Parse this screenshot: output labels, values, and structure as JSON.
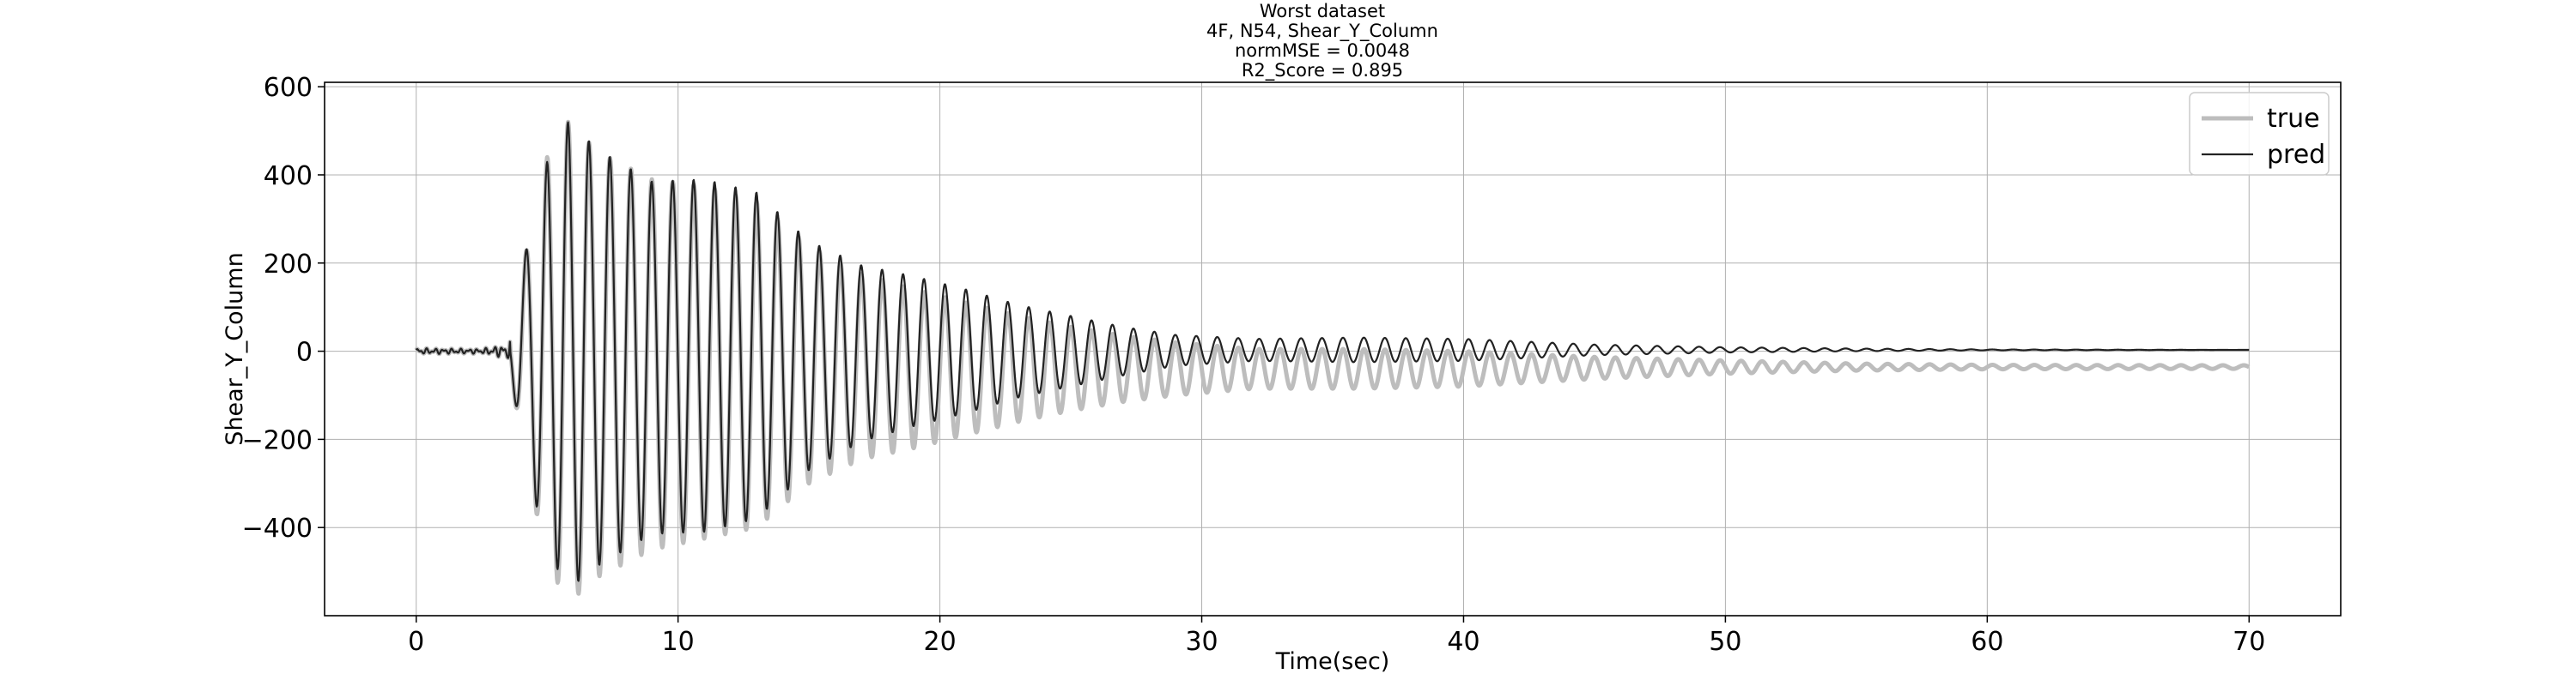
{
  "chart_data": {
    "type": "line",
    "title_lines": [
      "Worst dataset",
      "4F, N54, Shear_Y_Column",
      "normMSE = 0.0048",
      "R2_Score = 0.895"
    ],
    "xlabel": "Time(sec)",
    "ylabel": "Shear_Y_Column",
    "xlim": [
      -3.5,
      73.5
    ],
    "ylim": [
      -600,
      610
    ],
    "xticks": [
      0,
      10,
      20,
      30,
      40,
      50,
      60,
      70
    ],
    "yticks": [
      -400,
      -200,
      0,
      200,
      400,
      600
    ],
    "xtick_labels": [
      "0",
      "10",
      "20",
      "30",
      "40",
      "50",
      "60",
      "70"
    ],
    "ytick_labels": [
      "−400",
      "−200",
      "0",
      "200",
      "400",
      "600"
    ],
    "grid": true,
    "legend_position": "top-right",
    "series": [
      {
        "name": "true",
        "color": "#bdbdbd",
        "keypoints": {
          "t": [
            0,
            2.5,
            3.5,
            4.3,
            5.0,
            5.8,
            7.0,
            9.0,
            11.0,
            13.0,
            15.0,
            17.0,
            19.0,
            21.0,
            23.0,
            25.0,
            27.0,
            29.0,
            32.0,
            36.0,
            40.0,
            45.0,
            50.0,
            55.0,
            60.0,
            70.0
          ],
          "envelope": [
            10,
            8,
            25,
            270,
            460,
            545,
            480,
            420,
            400,
            370,
            270,
            210,
            180,
            150,
            120,
            95,
            75,
            60,
            45,
            45,
            40,
            25,
            15,
            8,
            5,
            4
          ],
          "offset": [
            0,
            0,
            0,
            -15,
            -20,
            -25,
            -30,
            -30,
            -25,
            -30,
            -30,
            -35,
            -40,
            -40,
            -40,
            -40,
            -40,
            -40,
            -40,
            -40,
            -40,
            -38,
            -36,
            -36,
            -36,
            -36
          ]
        },
        "legend_label": "true"
      },
      {
        "name": "pred",
        "color": "#222222",
        "keypoints": {
          "t": [
            0,
            2.5,
            3.5,
            4.3,
            5.0,
            5.8,
            7.0,
            9.0,
            11.0,
            13.0,
            15.0,
            17.0,
            19.0,
            21.0,
            23.0,
            25.0,
            27.0,
            29.0,
            32.0,
            36.0,
            40.0,
            45.0,
            50.0,
            55.0,
            60.0,
            70.0
          ],
          "envelope": [
            10,
            8,
            25,
            270,
            440,
            530,
            470,
            400,
            400,
            370,
            260,
            200,
            170,
            140,
            105,
            80,
            55,
            35,
            25,
            28,
            25,
            12,
            6,
            3,
            1,
            0
          ],
          "offset": [
            0,
            0,
            0,
            -10,
            -10,
            -10,
            -15,
            -15,
            -10,
            -10,
            -10,
            -5,
            0,
            0,
            0,
            0,
            0,
            2,
            3,
            3,
            3,
            3,
            3,
            3,
            3,
            3
          ]
        },
        "legend_label": "pred"
      }
    ]
  }
}
